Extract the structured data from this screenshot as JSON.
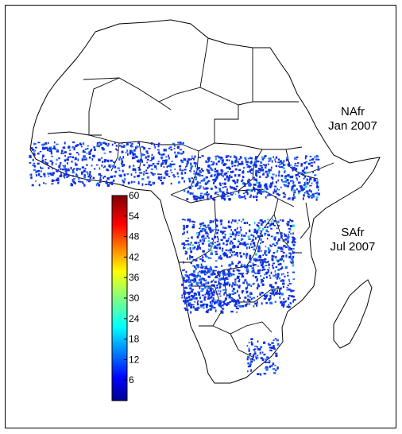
{
  "map": {
    "region": "Africa",
    "labels": {
      "north": {
        "line1": "NAfr",
        "line2": "Jan 2007"
      },
      "south": {
        "line1": "SAfr",
        "line2": "Jul 2007"
      }
    }
  },
  "colorbar": {
    "min": 0,
    "max": 60,
    "ticks": [
      "6",
      "12",
      "18",
      "24",
      "30",
      "36",
      "42",
      "48",
      "54",
      "60"
    ],
    "colormap": "jet",
    "stops": [
      "#00008f",
      "#0000ff",
      "#0080ff",
      "#00ffff",
      "#80ff80",
      "#ffff00",
      "#ff8000",
      "#ff0000",
      "#800000"
    ]
  },
  "colors": {
    "land_fill": "#ffffff",
    "borders": "#000000",
    "hotspot_low": "#1030e0",
    "hotspot_mid": "#2070ff",
    "hotspot_high": "#30d0c0"
  }
}
